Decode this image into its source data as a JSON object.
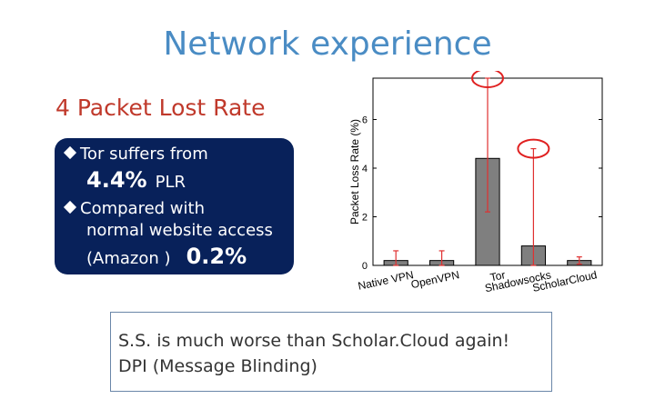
{
  "slide": {
    "title": "Network experience",
    "subtitle": "4 Packet Lost Rate"
  },
  "callout": {
    "line1": "Tor suffers from",
    "value1": "4.4%",
    "unit1": "PLR",
    "line2": "Compared with",
    "line3": "normal website access",
    "line4": "(Amazon )",
    "value2": "0.2%"
  },
  "note": {
    "line1": "S.S. is much worse than Scholar.Cloud again!",
    "line2": "DPI (Message Blinding)"
  },
  "colors": {
    "title": "#4a8cc4",
    "subtitle": "#c0392b",
    "callout_bg": "#08215a",
    "bar_fill": "#7f7f7f",
    "error_bar": "#e03030",
    "highlight_circle": "#e02020"
  },
  "chart_data": {
    "type": "bar",
    "ylabel": "Packet Loss Rate (%)",
    "ylim": [
      0,
      7.7
    ],
    "yticks": [
      0,
      2,
      4,
      6
    ],
    "categories": [
      "Native VPN",
      "OpenVPN",
      "Tor",
      "Shadowsocks",
      "ScholarCloud"
    ],
    "values": [
      0.2,
      0.2,
      4.4,
      0.8,
      0.2
    ],
    "error_low": [
      0.0,
      0.0,
      2.2,
      0.0,
      0.05
    ],
    "error_high": [
      0.6,
      0.6,
      7.7,
      4.8,
      0.35
    ],
    "highlighted": [
      "Tor",
      "Shadowsocks"
    ],
    "grid": false
  }
}
